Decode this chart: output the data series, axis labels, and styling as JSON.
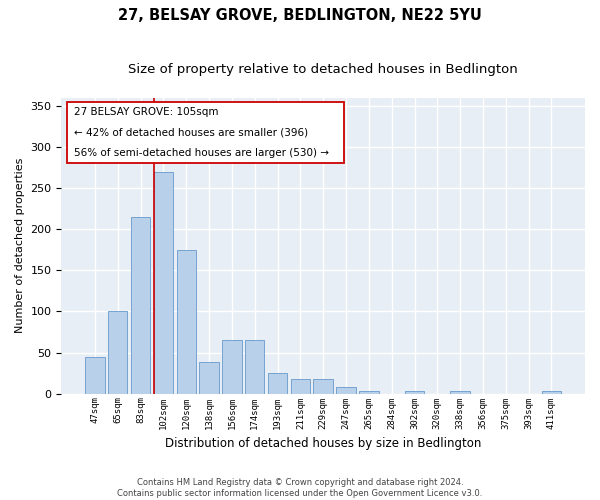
{
  "title": "27, BELSAY GROVE, BEDLINGTON, NE22 5YU",
  "subtitle": "Size of property relative to detached houses in Bedlington",
  "xlabel": "Distribution of detached houses by size in Bedlington",
  "ylabel": "Number of detached properties",
  "categories": [
    "47sqm",
    "65sqm",
    "83sqm",
    "102sqm",
    "120sqm",
    "138sqm",
    "156sqm",
    "174sqm",
    "193sqm",
    "211sqm",
    "229sqm",
    "247sqm",
    "265sqm",
    "284sqm",
    "302sqm",
    "320sqm",
    "338sqm",
    "356sqm",
    "375sqm",
    "393sqm",
    "411sqm"
  ],
  "values": [
    45,
    100,
    215,
    270,
    175,
    38,
    65,
    65,
    25,
    18,
    18,
    8,
    3,
    0,
    3,
    0,
    3,
    0,
    0,
    0,
    3
  ],
  "bar_color": "#b8d0ea",
  "bar_edge_color": "#6699cc",
  "annotation_line1": "27 BELSAY GROVE: 105sqm",
  "annotation_line2": "← 42% of detached houses are smaller (396)",
  "annotation_line3": "56% of semi-detached houses are larger (530) →",
  "vline_index": 3,
  "vline_color": "#cc0000",
  "background_color": "#e8eef5",
  "grid_color": "#ffffff",
  "footer_line1": "Contains HM Land Registry data © Crown copyright and database right 2024.",
  "footer_line2": "Contains public sector information licensed under the Open Government Licence v3.0.",
  "ylim_max": 360,
  "yticks": [
    0,
    50,
    100,
    150,
    200,
    250,
    300,
    350
  ]
}
